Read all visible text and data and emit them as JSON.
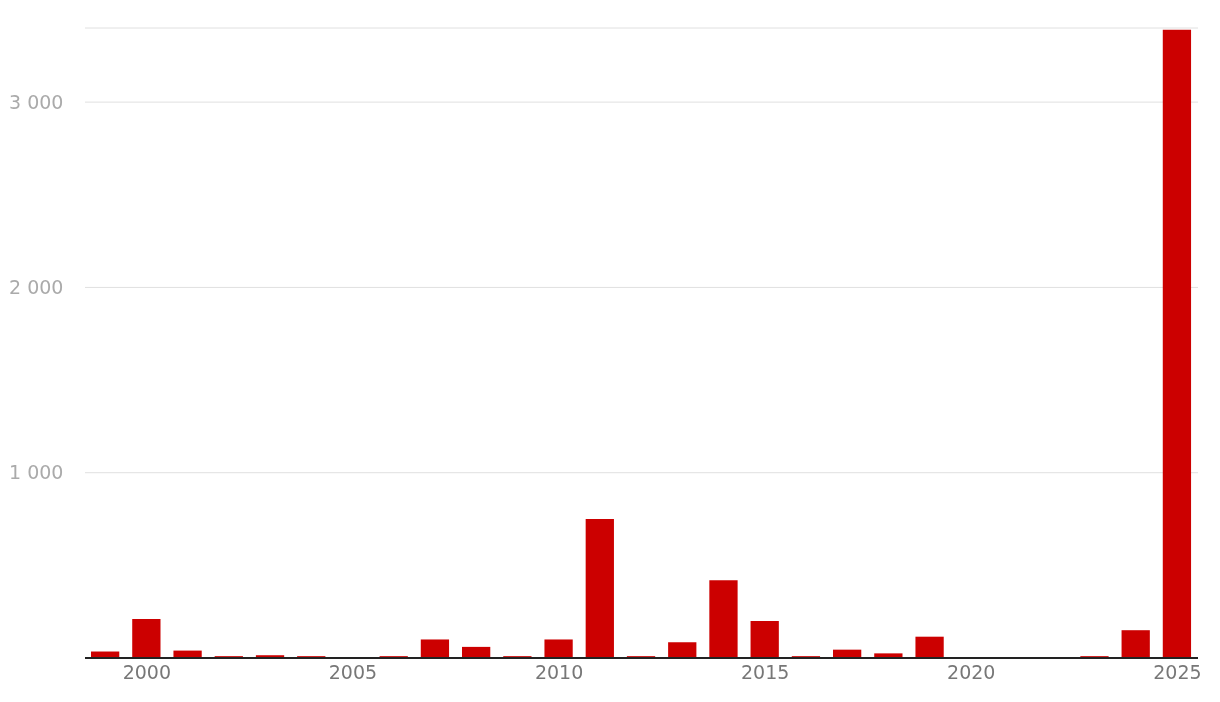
{
  "chart_data": {
    "type": "bar",
    "x": [
      1999,
      2000,
      2001,
      2002,
      2003,
      2004,
      2005,
      2006,
      2007,
      2008,
      2009,
      2010,
      2011,
      2012,
      2013,
      2014,
      2015,
      2016,
      2017,
      2018,
      2019,
      2020,
      2021,
      2022,
      2023,
      2024,
      2025
    ],
    "values": [
      35,
      210,
      40,
      10,
      15,
      10,
      0,
      10,
      100,
      60,
      10,
      100,
      750,
      10,
      85,
      420,
      200,
      10,
      45,
      25,
      115,
      0,
      0,
      0,
      10,
      150,
      3390
    ],
    "color": "#cc0000",
    "xlim": [
      1998.5,
      2025.5
    ],
    "xticks": [
      2000,
      2005,
      2010,
      2015,
      2020,
      2025
    ],
    "ylim": [
      0,
      3400
    ],
    "yticks": [
      {
        "value": 1000,
        "label": "1 000"
      },
      {
        "value": 2000,
        "label": "2 000"
      },
      {
        "value": 3000,
        "label": "3 000"
      }
    ],
    "grid": "y"
  }
}
